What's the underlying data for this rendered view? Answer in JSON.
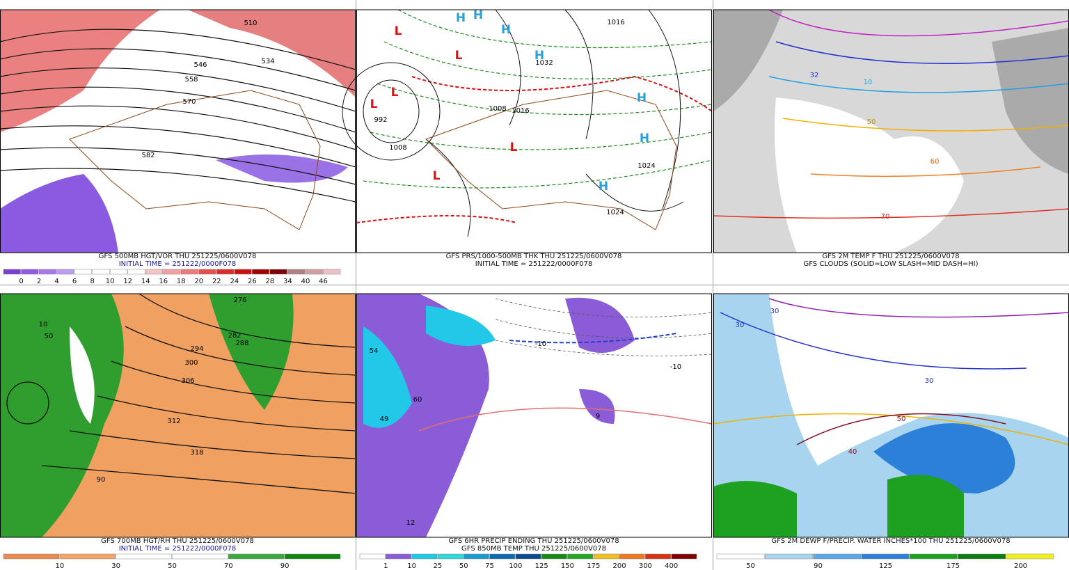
{
  "panels": [
    {
      "caption": [
        "GFS 500MB HGT/VOR THU 251225/0600V078",
        "INITIAL TIME = 251222/0000F078"
      ],
      "labels": [
        "510",
        "546",
        "534",
        "558",
        "570",
        "582"
      ],
      "colorbar": {
        "labels": [
          "0",
          "2",
          "4",
          "6",
          "8",
          "10",
          "12",
          "14",
          "16",
          "18",
          "20",
          "22",
          "24",
          "26",
          "28",
          "34",
          "40",
          "46"
        ],
        "colors": [
          "#7b3fd0",
          "#8f5be0",
          "#a47ae8",
          "#bb9cf0",
          "#ffffff",
          "#ffffff",
          "#ffffff",
          "#ffffff",
          "#f7c4c4",
          "#f4a0a0",
          "#ef7a7a",
          "#e85050",
          "#dc2a2a",
          "#c81010",
          "#a00000",
          "#800000",
          "#b08080",
          "#d0a0a0",
          "#f0c0c8"
        ]
      }
    },
    {
      "caption": [
        "GFS PRS/1000-500MB THK THU 251225/0600V078",
        "INITIAL TIME = 251222/0000F078"
      ],
      "labels": [
        "L",
        "L",
        "L",
        "L",
        "L",
        "L",
        "H",
        "H",
        "H",
        "H",
        "H",
        "H",
        "H",
        "1016",
        "1032",
        "1024",
        "1024",
        "992",
        "1008",
        "1008",
        "1016"
      ]
    },
    {
      "caption": [
        "GFS 2M TEMP F THU 251225/0600V078",
        "GFS CLOUDS (SOLID=LOW SLASH=MID DASH=HI)"
      ],
      "labels": [
        "32",
        "50",
        "60",
        "70",
        "10"
      ]
    },
    {
      "caption": [
        "GFS 700MB HGT/RH THU 251225/0600V078",
        "INITIAL TIME = 251222/0000F078"
      ],
      "labels": [
        "276",
        "282",
        "288",
        "294",
        "300",
        "306",
        "312",
        "318",
        "10",
        "50",
        "90"
      ],
      "colorbar": {
        "labels": [
          "10",
          "30",
          "50",
          "70",
          "90"
        ],
        "colors": [
          "#e98b4f",
          "#f4a46a",
          "#ffffff",
          "#ffffff",
          "#3aa83a",
          "#118411"
        ]
      }
    },
    {
      "caption": [
        "GFS 6HR PRECIP ENDING THU 251225/0600V078",
        "GFS 850MB TEMP THU 251225/0600V078"
      ],
      "labels": [
        "-10",
        "-10",
        "54",
        "60",
        "49",
        "9",
        "12"
      ],
      "colorbar": {
        "labels": [
          "1",
          "10",
          "25",
          "50",
          "75",
          "100",
          "125",
          "150",
          "175",
          "200",
          "300",
          "400"
        ],
        "colors": [
          "#ffffff",
          "#8a5cd8",
          "#22c8e8",
          "#30d8d8",
          "#1a9bd0",
          "#0b6bb0",
          "#0a4a90",
          "#168a16",
          "#24a824",
          "#f0c020",
          "#f07820",
          "#d83010",
          "#800000"
        ]
      }
    },
    {
      "caption": [
        "GFS 2M DEWP F/PRECIP. WATER INCHES*100 THU 251225/0600V078"
      ],
      "labels": [
        "30",
        "30",
        "30",
        "40",
        "50"
      ],
      "colorbar": {
        "labels": [
          "50",
          "90",
          "125",
          "175",
          "200"
        ],
        "colors": [
          "#ffffff",
          "#a8d4f0",
          "#5aa8e8",
          "#2c80d8",
          "#1ea020",
          "#0c7c10",
          "#f0f020"
        ]
      }
    }
  ]
}
